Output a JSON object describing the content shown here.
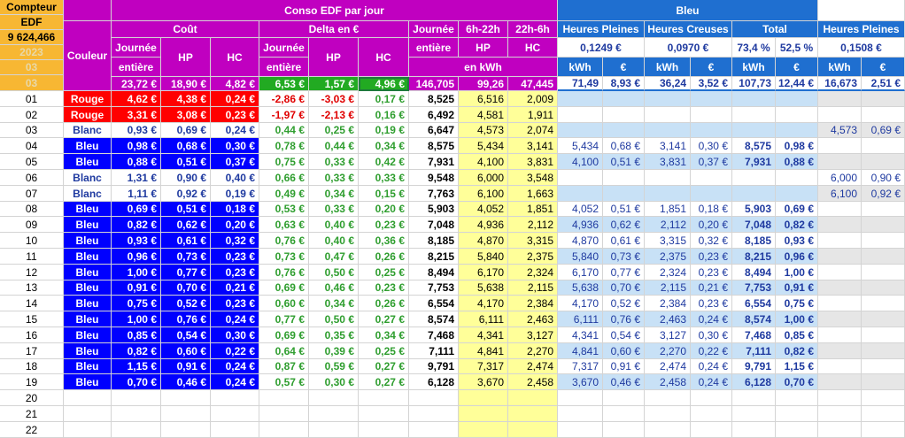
{
  "header": {
    "compteur": "Compteur",
    "edf": "EDF",
    "meter_value": "9 624,466",
    "year": "2023",
    "month": "03",
    "couleur": "Couleur",
    "conso_title": "Conso EDF par jour",
    "cout": "Coût",
    "delta": "Delta en €",
    "journee": "Journée",
    "entiere": "entière",
    "hp": "HP",
    "hc": "HC",
    "h6_22": "6h-22h",
    "h22_6": "22h-6h",
    "en_kwh": "en kWh",
    "cost_totals": [
      "23,72 €",
      "18,90 €",
      "4,82 €"
    ],
    "delta_totals": [
      "6,53 €",
      "1,57 €",
      "4,96 €"
    ],
    "kwh_totals": [
      "146,705",
      "99,26",
      "47,445"
    ],
    "bleu": "Bleu",
    "heures_pleines": "Heures Pleines",
    "heures_creuses": "Heures Creuses",
    "total": "Total",
    "hp_price": "0,1249 €",
    "hc_price": "0,0970 €",
    "pct1": "73,4 %",
    "pct2": "52,5 %",
    "blanc_hp_price": "0,1508 €",
    "kwh": "kWh",
    "eur": "€",
    "bleu_totals": [
      "71,49",
      "8,93 €",
      "36,24",
      "3,52 €",
      "107,73",
      "12,44 €"
    ],
    "blanc_totals": [
      "16,673",
      "2,51 €"
    ]
  },
  "rows": [
    {
      "day": "01",
      "color": "Rouge",
      "cost": [
        "4,62 €",
        "4,38 €",
        "0,24 €"
      ],
      "delta": [
        "-2,86 €",
        "-3,03 €",
        "0,17 €"
      ],
      "kwh": [
        "8,525",
        "6,516",
        "2,009"
      ],
      "bleu": [
        "",
        "",
        "",
        "",
        "",
        ""
      ],
      "blanc": [
        "",
        ""
      ]
    },
    {
      "day": "02",
      "color": "Rouge",
      "cost": [
        "3,31 €",
        "3,08 €",
        "0,23 €"
      ],
      "delta": [
        "-1,97 €",
        "-2,13 €",
        "0,16 €"
      ],
      "kwh": [
        "6,492",
        "4,581",
        "1,911"
      ],
      "bleu": [
        "",
        "",
        "",
        "",
        "",
        ""
      ],
      "blanc": [
        "",
        ""
      ]
    },
    {
      "day": "03",
      "color": "Blanc",
      "cost": [
        "0,93 €",
        "0,69 €",
        "0,24 €"
      ],
      "delta": [
        "0,44 €",
        "0,25 €",
        "0,19 €"
      ],
      "kwh": [
        "6,647",
        "4,573",
        "2,074"
      ],
      "bleu": [
        "",
        "",
        "",
        "",
        "",
        ""
      ],
      "blanc": [
        "4,573",
        "0,69 €"
      ]
    },
    {
      "day": "04",
      "color": "Bleu",
      "cost": [
        "0,98 €",
        "0,68 €",
        "0,30 €"
      ],
      "delta": [
        "0,78 €",
        "0,44 €",
        "0,34 €"
      ],
      "kwh": [
        "8,575",
        "5,434",
        "3,141"
      ],
      "bleu": [
        "5,434",
        "0,68 €",
        "3,141",
        "0,30 €",
        "8,575",
        "0,98 €"
      ],
      "blanc": [
        "",
        ""
      ]
    },
    {
      "day": "05",
      "color": "Bleu",
      "cost": [
        "0,88 €",
        "0,51 €",
        "0,37 €"
      ],
      "delta": [
        "0,75 €",
        "0,33 €",
        "0,42 €"
      ],
      "kwh": [
        "7,931",
        "4,100",
        "3,831"
      ],
      "bleu": [
        "4,100",
        "0,51 €",
        "3,831",
        "0,37 €",
        "7,931",
        "0,88 €"
      ],
      "blanc": [
        "",
        ""
      ]
    },
    {
      "day": "06",
      "color": "Blanc",
      "cost": [
        "1,31 €",
        "0,90 €",
        "0,40 €"
      ],
      "delta": [
        "0,66 €",
        "0,33 €",
        "0,33 €"
      ],
      "kwh": [
        "9,548",
        "6,000",
        "3,548"
      ],
      "bleu": [
        "",
        "",
        "",
        "",
        "",
        ""
      ],
      "blanc": [
        "6,000",
        "0,90 €"
      ]
    },
    {
      "day": "07",
      "color": "Blanc",
      "cost": [
        "1,11 €",
        "0,92 €",
        "0,19 €"
      ],
      "delta": [
        "0,49 €",
        "0,34 €",
        "0,15 €"
      ],
      "kwh": [
        "7,763",
        "6,100",
        "1,663"
      ],
      "bleu": [
        "",
        "",
        "",
        "",
        "",
        ""
      ],
      "blanc": [
        "6,100",
        "0,92 €"
      ]
    },
    {
      "day": "08",
      "color": "Bleu",
      "cost": [
        "0,69 €",
        "0,51 €",
        "0,18 €"
      ],
      "delta": [
        "0,53 €",
        "0,33 €",
        "0,20 €"
      ],
      "kwh": [
        "5,903",
        "4,052",
        "1,851"
      ],
      "bleu": [
        "4,052",
        "0,51 €",
        "1,851",
        "0,18 €",
        "5,903",
        "0,69 €"
      ],
      "blanc": [
        "",
        ""
      ]
    },
    {
      "day": "09",
      "color": "Bleu",
      "cost": [
        "0,82 €",
        "0,62 €",
        "0,20 €"
      ],
      "delta": [
        "0,63 €",
        "0,40 €",
        "0,23 €"
      ],
      "kwh": [
        "7,048",
        "4,936",
        "2,112"
      ],
      "bleu": [
        "4,936",
        "0,62 €",
        "2,112",
        "0,20 €",
        "7,048",
        "0,82 €"
      ],
      "blanc": [
        "",
        ""
      ]
    },
    {
      "day": "10",
      "color": "Bleu",
      "cost": [
        "0,93 €",
        "0,61 €",
        "0,32 €"
      ],
      "delta": [
        "0,76 €",
        "0,40 €",
        "0,36 €"
      ],
      "kwh": [
        "8,185",
        "4,870",
        "3,315"
      ],
      "bleu": [
        "4,870",
        "0,61 €",
        "3,315",
        "0,32 €",
        "8,185",
        "0,93 €"
      ],
      "blanc": [
        "",
        ""
      ]
    },
    {
      "day": "11",
      "color": "Bleu",
      "cost": [
        "0,96 €",
        "0,73 €",
        "0,23 €"
      ],
      "delta": [
        "0,73 €",
        "0,47 €",
        "0,26 €"
      ],
      "kwh": [
        "8,215",
        "5,840",
        "2,375"
      ],
      "bleu": [
        "5,840",
        "0,73 €",
        "2,375",
        "0,23 €",
        "8,215",
        "0,96 €"
      ],
      "blanc": [
        "",
        ""
      ]
    },
    {
      "day": "12",
      "color": "Bleu",
      "cost": [
        "1,00 €",
        "0,77 €",
        "0,23 €"
      ],
      "delta": [
        "0,76 €",
        "0,50 €",
        "0,25 €"
      ],
      "kwh": [
        "8,494",
        "6,170",
        "2,324"
      ],
      "bleu": [
        "6,170",
        "0,77 €",
        "2,324",
        "0,23 €",
        "8,494",
        "1,00 €"
      ],
      "blanc": [
        "",
        ""
      ]
    },
    {
      "day": "13",
      "color": "Bleu",
      "cost": [
        "0,91 €",
        "0,70 €",
        "0,21 €"
      ],
      "delta": [
        "0,69 €",
        "0,46 €",
        "0,23 €"
      ],
      "kwh": [
        "7,753",
        "5,638",
        "2,115"
      ],
      "bleu": [
        "5,638",
        "0,70 €",
        "2,115",
        "0,21 €",
        "7,753",
        "0,91 €"
      ],
      "blanc": [
        "",
        ""
      ]
    },
    {
      "day": "14",
      "color": "Bleu",
      "cost": [
        "0,75 €",
        "0,52 €",
        "0,23 €"
      ],
      "delta": [
        "0,60 €",
        "0,34 €",
        "0,26 €"
      ],
      "kwh": [
        "6,554",
        "4,170",
        "2,384"
      ],
      "bleu": [
        "4,170",
        "0,52 €",
        "2,384",
        "0,23 €",
        "6,554",
        "0,75 €"
      ],
      "blanc": [
        "",
        ""
      ]
    },
    {
      "day": "15",
      "color": "Bleu",
      "cost": [
        "1,00 €",
        "0,76 €",
        "0,24 €"
      ],
      "delta": [
        "0,77 €",
        "0,50 €",
        "0,27 €"
      ],
      "kwh": [
        "8,574",
        "6,111",
        "2,463"
      ],
      "bleu": [
        "6,111",
        "0,76 €",
        "2,463",
        "0,24 €",
        "8,574",
        "1,00 €"
      ],
      "blanc": [
        "",
        ""
      ]
    },
    {
      "day": "16",
      "color": "Bleu",
      "cost": [
        "0,85 €",
        "0,54 €",
        "0,30 €"
      ],
      "delta": [
        "0,69 €",
        "0,35 €",
        "0,34 €"
      ],
      "kwh": [
        "7,468",
        "4,341",
        "3,127"
      ],
      "bleu": [
        "4,341",
        "0,54 €",
        "3,127",
        "0,30 €",
        "7,468",
        "0,85 €"
      ],
      "blanc": [
        "",
        ""
      ]
    },
    {
      "day": "17",
      "color": "Bleu",
      "cost": [
        "0,82 €",
        "0,60 €",
        "0,22 €"
      ],
      "delta": [
        "0,64 €",
        "0,39 €",
        "0,25 €"
      ],
      "kwh": [
        "7,111",
        "4,841",
        "2,270"
      ],
      "bleu": [
        "4,841",
        "0,60 €",
        "2,270",
        "0,22 €",
        "7,111",
        "0,82 €"
      ],
      "blanc": [
        "",
        ""
      ]
    },
    {
      "day": "18",
      "color": "Bleu",
      "cost": [
        "1,15 €",
        "0,91 €",
        "0,24 €"
      ],
      "delta": [
        "0,87 €",
        "0,59 €",
        "0,27 €"
      ],
      "kwh": [
        "9,791",
        "7,317",
        "2,474"
      ],
      "bleu": [
        "7,317",
        "0,91 €",
        "2,474",
        "0,24 €",
        "9,791",
        "1,15 €"
      ],
      "blanc": [
        "",
        ""
      ]
    },
    {
      "day": "19",
      "color": "Bleu",
      "cost": [
        "0,70 €",
        "0,46 €",
        "0,24 €"
      ],
      "delta": [
        "0,57 €",
        "0,30 €",
        "0,27 €"
      ],
      "kwh": [
        "6,128",
        "3,670",
        "2,458"
      ],
      "bleu": [
        "3,670",
        "0,46 €",
        "2,458",
        "0,24 €",
        "6,128",
        "0,70 €"
      ],
      "blanc": [
        "",
        ""
      ]
    },
    {
      "day": "20",
      "color": "",
      "cost": [
        "",
        "",
        ""
      ],
      "delta": [
        "",
        "",
        ""
      ],
      "kwh": [
        "",
        "",
        ""
      ],
      "bleu": [
        "",
        "",
        "",
        "",
        "",
        ""
      ],
      "blanc": [
        "",
        ""
      ]
    },
    {
      "day": "21",
      "color": "",
      "cost": [
        "",
        "",
        ""
      ],
      "delta": [
        "",
        "",
        ""
      ],
      "kwh": [
        "",
        "",
        ""
      ],
      "bleu": [
        "",
        "",
        "",
        "",
        "",
        ""
      ],
      "blanc": [
        "",
        ""
      ]
    },
    {
      "day": "22",
      "color": "",
      "cost": [
        "",
        "",
        ""
      ],
      "delta": [
        "",
        "",
        ""
      ],
      "kwh": [
        "",
        "",
        ""
      ],
      "bleu": [
        "",
        "",
        "",
        "",
        "",
        ""
      ],
      "blanc": [
        "",
        ""
      ]
    }
  ]
}
